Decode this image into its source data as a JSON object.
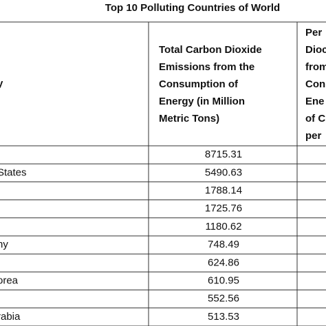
{
  "title": "Top 10 Polluting Countries of World",
  "table": {
    "header": {
      "country": [
        "y"
      ],
      "emissions": [
        "Total Carbon Dioxide",
        "Emissions from the",
        "Consumption of",
        "Energy (in Million",
        "Metric Tons)"
      ],
      "percent": [
        "Per",
        "Dioc",
        "from",
        "Con",
        "Ene",
        "of C",
        "per"
      ]
    },
    "rows": [
      {
        "emissions": 8715.31
      },
      {
        "country": "States",
        "emissions": 5490.63
      },
      {
        "emissions": 1788.14
      },
      {
        "emissions": 1725.76
      },
      {
        "emissions": 1180.62
      },
      {
        "country": "ny",
        "emissions": 748.49
      },
      {
        "emissions": 624.86
      },
      {
        "country": "orea",
        "emissions": 610.95
      },
      {
        "emissions": 552.56
      },
      {
        "country": "rabia",
        "emissions": 513.53
      }
    ]
  }
}
